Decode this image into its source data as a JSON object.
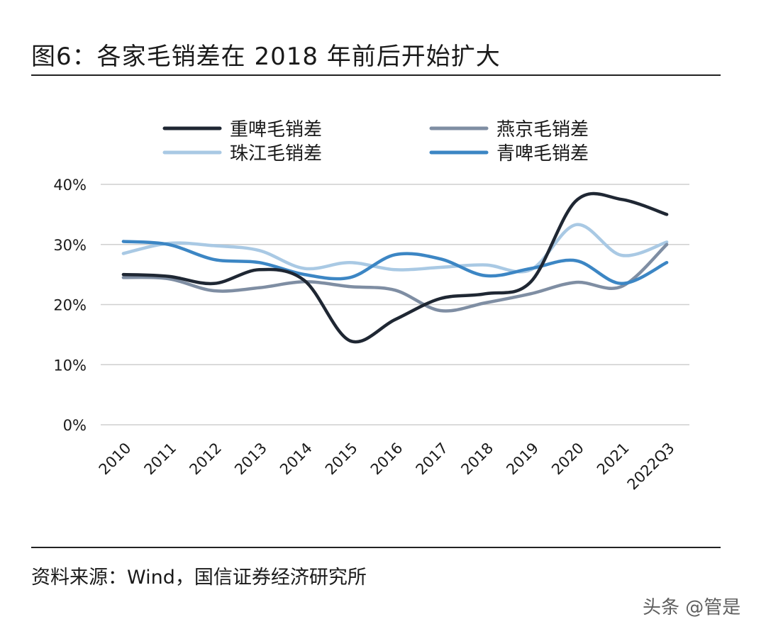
{
  "title": "图6：各家毛销差在 2018 年前后开始扩大",
  "source": "资料来源：Wind，国信证券经济研究所",
  "watermark": "头条 @管是",
  "chart_data": {
    "type": "line",
    "title": "图6：各家毛销差在 2018 年前后开始扩大",
    "xlabel": "",
    "ylabel": "",
    "categories": [
      "2010",
      "2011",
      "2012",
      "2013",
      "2014",
      "2015",
      "2016",
      "2017",
      "2018",
      "2019",
      "2020",
      "2021",
      "2022Q3"
    ],
    "ylim": [
      0,
      40
    ],
    "yticks": [
      "0%",
      "10%",
      "20%",
      "30%",
      "40%"
    ],
    "ytick_values": [
      0,
      10,
      20,
      30,
      40
    ],
    "grid": true,
    "legend_position": "top",
    "series": [
      {
        "name": "重啤毛销差",
        "color": "#1f2733",
        "values": [
          25.0,
          24.7,
          23.5,
          25.8,
          24.0,
          14.0,
          17.5,
          21.0,
          21.8,
          23.8,
          37.3,
          37.5,
          35.0
        ]
      },
      {
        "name": "燕京毛销差",
        "color": "#7f8ea3",
        "values": [
          24.5,
          24.3,
          22.3,
          22.8,
          23.8,
          23.0,
          22.4,
          19.0,
          20.3,
          21.8,
          23.7,
          23.0,
          30.0
        ]
      },
      {
        "name": "珠江毛销差",
        "color": "#a9c9e4",
        "values": [
          28.5,
          30.2,
          29.8,
          29.0,
          26.0,
          27.0,
          25.8,
          26.2,
          26.6,
          25.8,
          33.3,
          28.2,
          30.4
        ]
      },
      {
        "name": "青啤毛销差",
        "color": "#3c86c4",
        "values": [
          30.5,
          30.0,
          27.5,
          27.0,
          25.0,
          24.5,
          28.3,
          27.6,
          24.8,
          26.0,
          27.3,
          23.5,
          27.0
        ]
      }
    ]
  }
}
